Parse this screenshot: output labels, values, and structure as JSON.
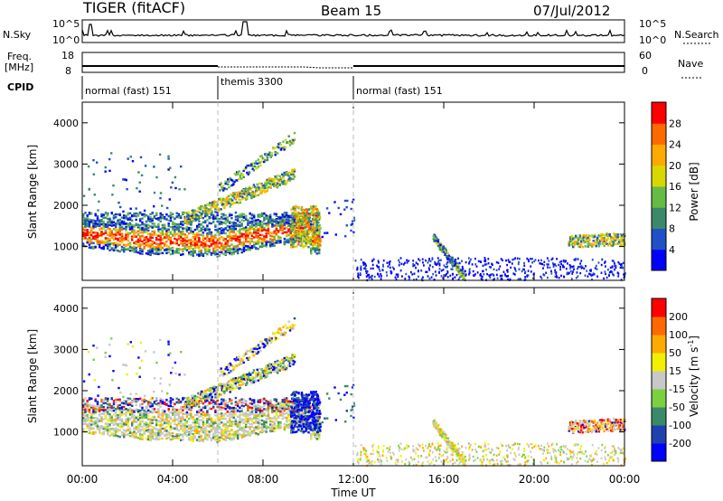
{
  "header": {
    "radar": "TIGER (fitACF)",
    "beam": "Beam 15",
    "date": "07/Jul/2012"
  },
  "noise_panel": {
    "left_label": "N.Sky",
    "right_label": "N.Search",
    "left_ticks": [
      "10^5",
      "10^0"
    ],
    "right_ticks": [
      "10^5",
      "10^0"
    ]
  },
  "freq_panel": {
    "left_label_1": "Freq.",
    "left_label_2": "[MHz]",
    "right_label": "Nave",
    "left_ticks": [
      "18",
      "8"
    ],
    "right_ticks": [
      "60",
      "0"
    ]
  },
  "cpid": {
    "label": "CPID",
    "segments": [
      {
        "name": "normal (fast) 151",
        "start": 0,
        "end": 6
      },
      {
        "name": "themis 3300",
        "start": 6,
        "end": 12
      },
      {
        "name": "normal (fast) 151",
        "start": 12,
        "end": 24
      }
    ]
  },
  "chart_data": [
    {
      "type": "heatmap",
      "quantity": "Power",
      "ylabel": "Slant Range [km]",
      "ylim": [
        180,
        4500
      ],
      "yticks": [
        1000,
        2000,
        3000,
        4000
      ],
      "xlim": [
        0,
        24
      ],
      "colorbar": {
        "label": "Power [dB]",
        "ticks": [
          "4",
          "8",
          "12",
          "16",
          "20",
          "24",
          "28"
        ],
        "colors": [
          "#0000ff",
          "#2050c8",
          "#3a8a6a",
          "#66bb44",
          "#d8d800",
          "#ffaa00",
          "#ff6a00",
          "#ff0000"
        ]
      }
    },
    {
      "type": "heatmap",
      "quantity": "Velocity",
      "ylabel": "Slant Range [km]",
      "ylim": [
        180,
        4500
      ],
      "yticks": [
        1000,
        2000,
        3000,
        4000
      ],
      "xlim": [
        0,
        24
      ],
      "colorbar": {
        "label_main": "Velocity [m s",
        "label_sup": "-1",
        "label_end": "]",
        "ticks": [
          "200",
          "100",
          "50",
          "15",
          "-15",
          "-50",
          "-100",
          "-200"
        ],
        "colors": [
          "#0000ff",
          "#2040b0",
          "#3a8a6a",
          "#7cd040",
          "#c8c8c8",
          "#f0f000",
          "#ffaa00",
          "#ff6a00",
          "#ff0000"
        ]
      }
    }
  ],
  "x_axis": {
    "label": "Time UT",
    "ticks": [
      "00:00",
      "04:00",
      "08:00",
      "12:00",
      "16:00",
      "20:00",
      "00:00"
    ]
  }
}
